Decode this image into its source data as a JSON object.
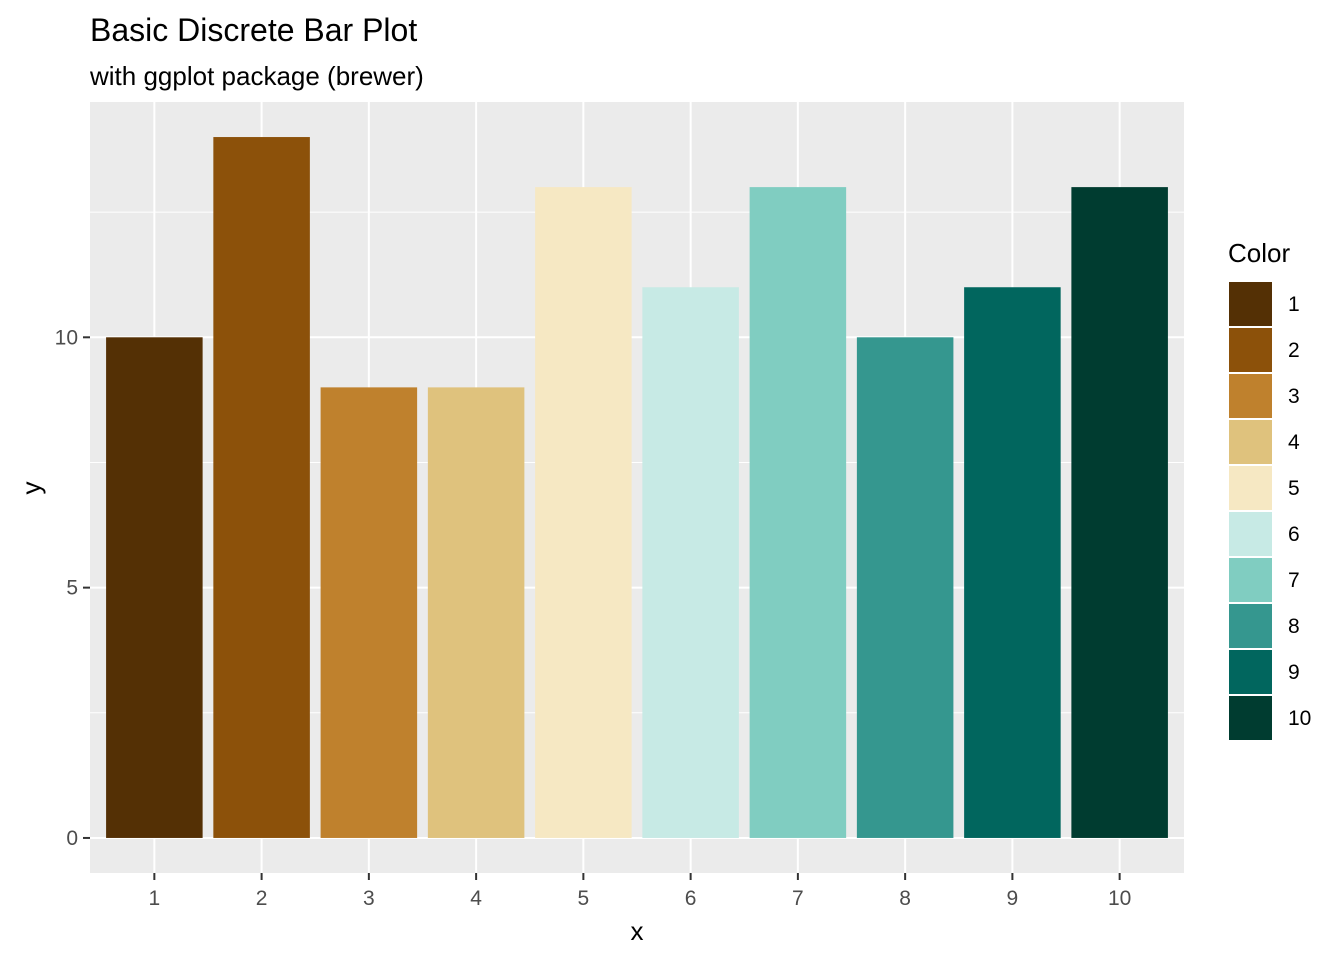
{
  "chart_data": {
    "type": "bar",
    "title": "Basic Discrete Bar Plot",
    "subtitle": "with ggplot package (brewer)",
    "xlabel": "x",
    "ylabel": "y",
    "categories": [
      "1",
      "2",
      "3",
      "4",
      "5",
      "6",
      "7",
      "8",
      "9",
      "10"
    ],
    "values": [
      10,
      14,
      9,
      9,
      13,
      11,
      13,
      10,
      11,
      13
    ],
    "colors": [
      "#543005",
      "#8C510A",
      "#BF812D",
      "#DFC27D",
      "#F6E8C3",
      "#C7EAE5",
      "#80CDC1",
      "#35978F",
      "#01665E",
      "#003C30"
    ],
    "ylim": [
      -0.7,
      14.7
    ],
    "yticks": [
      0,
      5,
      10
    ],
    "ytick_labels": [
      "0",
      "5",
      "10"
    ],
    "grid": true,
    "panel_background": "#EBEBEB",
    "legend": {
      "title": "Color",
      "position": "right",
      "labels": [
        "1",
        "2",
        "3",
        "4",
        "5",
        "6",
        "7",
        "8",
        "9",
        "10"
      ]
    }
  }
}
